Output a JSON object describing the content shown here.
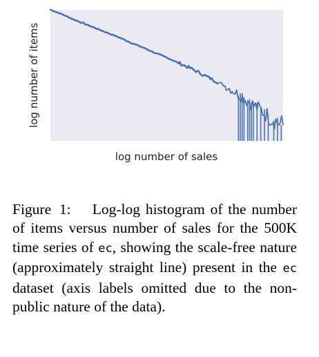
{
  "figure": {
    "chart_data": {
      "type": "line",
      "title": "",
      "xlabel": "log number of sales",
      "ylabel": "log number of items",
      "x_scale": "log",
      "y_scale": "log",
      "tick_labels": "none",
      "grid": false,
      "legend": "none",
      "background_color": "#eaeaf2",
      "line_color": "#4c72b0",
      "series": [
        {
          "x": [
            0.0,
            0.05,
            0.1,
            0.15,
            0.2,
            0.25,
            0.3,
            0.35,
            0.4,
            0.45,
            0.5,
            0.55,
            0.6,
            0.65,
            0.7,
            0.75,
            0.8,
            0.85,
            0.9,
            0.95,
            1.0
          ],
          "y": [
            1.0,
            0.965,
            0.925,
            0.89,
            0.855,
            0.82,
            0.785,
            0.745,
            0.71,
            0.67,
            0.635,
            0.595,
            0.555,
            0.51,
            0.465,
            0.42,
            0.365,
            0.3,
            0.24,
            0.17,
            0.12
          ]
        }
      ]
    }
  },
  "caption": {
    "label": "Figure 1:",
    "part1": "Log-log histogram of the number of items versus number of sales for the 500K time series of ",
    "code1": "ec",
    "part2": ", showing the scale-free nature (approximately straight line) present in the ",
    "code2": "ec",
    "part3": " dataset (axis labels omitted due to the non-public nature of the data)."
  }
}
